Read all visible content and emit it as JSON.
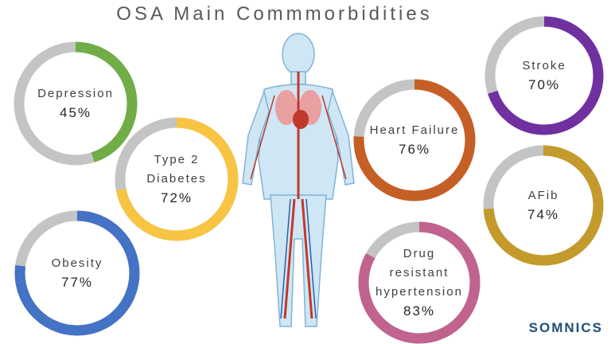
{
  "title": "OSA Main Commmorbidities",
  "brand": "SOMNICS",
  "chart_data": [
    {
      "type": "donut",
      "title": "Depression",
      "values": [
        45
      ],
      "value_labels": [
        "45%"
      ],
      "color": "#70ad47"
    },
    {
      "type": "donut",
      "title": "Type 2 Diabetes",
      "values": [
        72
      ],
      "value_labels": [
        "72%"
      ],
      "color": "#f7c443"
    },
    {
      "type": "donut",
      "title": "Obesity",
      "values": [
        77
      ],
      "value_labels": [
        "77%"
      ],
      "color": "#4472c4"
    },
    {
      "type": "donut",
      "title": "Heart Failure",
      "values": [
        76
      ],
      "value_labels": [
        "76%"
      ],
      "color": "#c55f25"
    },
    {
      "type": "donut",
      "title": "Stroke",
      "values": [
        70
      ],
      "value_labels": [
        "70%"
      ],
      "color": "#7030a0"
    },
    {
      "type": "donut",
      "title": "AFib",
      "values": [
        74
      ],
      "value_labels": [
        "74%"
      ],
      "color": "#c49a2c"
    },
    {
      "type": "donut",
      "title": "Drug resistant hypertension",
      "values": [
        83
      ],
      "value_labels": [
        "83%"
      ],
      "color": "#c0638f"
    }
  ]
}
